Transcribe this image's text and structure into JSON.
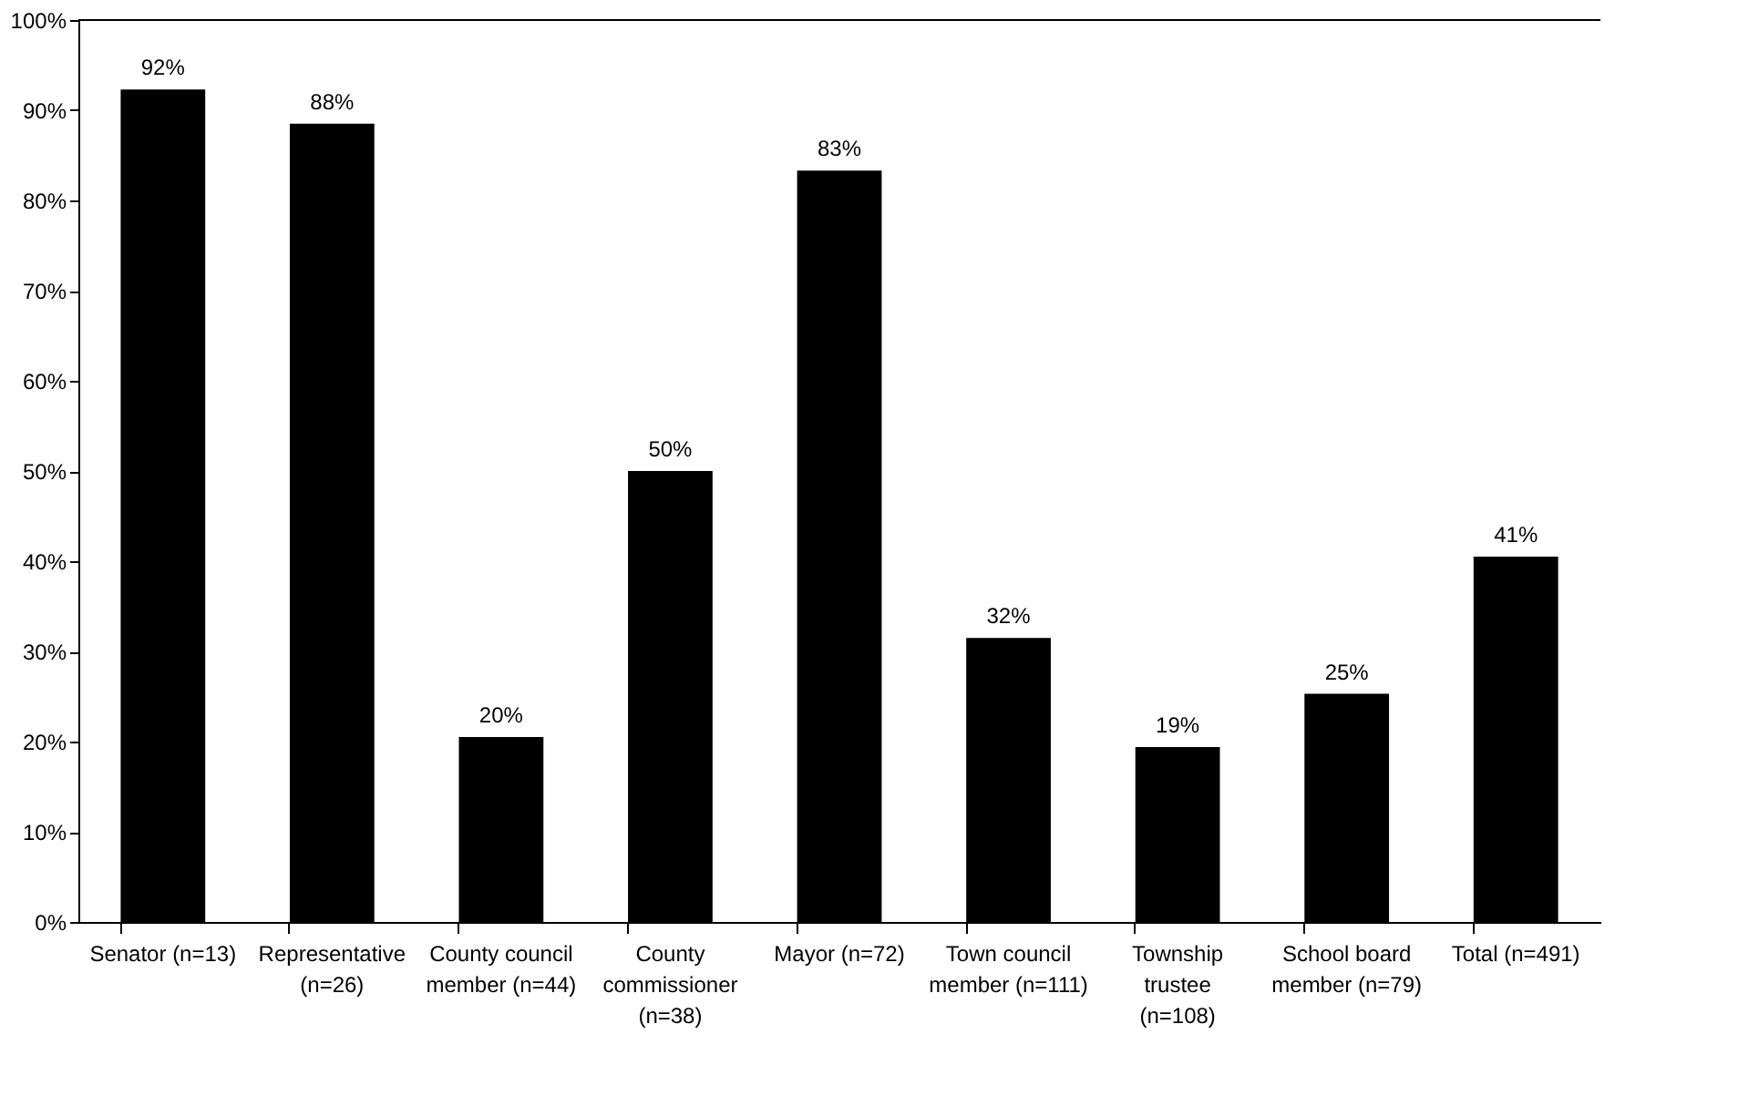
{
  "chart_data": {
    "type": "bar",
    "categories": [
      "Senator (n=13)",
      "Representative (n=26)",
      "County council member (n=44)",
      "County commissioner (n=38)",
      "Mayor (n=72)",
      "Town council member (n=111)",
      "Township trustee (n=108)",
      "School board member (n=79)",
      "Total (n=491)"
    ],
    "values": [
      92.3,
      88.5,
      20.5,
      50,
      83.3,
      31.5,
      19.4,
      25.3,
      40.5
    ],
    "value_labels": [
      "92%",
      "88%",
      "20%",
      "50%",
      "83%",
      "32%",
      "19%",
      "25%",
      "41%"
    ],
    "color": "#000000",
    "ylim": [
      0,
      100
    ],
    "yticks": [
      {
        "value": 0,
        "label": "0%"
      },
      {
        "value": 10,
        "label": "10%"
      },
      {
        "value": 20,
        "label": "20%"
      },
      {
        "value": 30,
        "label": "30%"
      },
      {
        "value": 40,
        "label": "40%"
      },
      {
        "value": 50,
        "label": "50%"
      },
      {
        "value": 60,
        "label": "60%"
      },
      {
        "value": 70,
        "label": "70%"
      },
      {
        "value": 80,
        "label": "80%"
      },
      {
        "value": 90,
        "label": "90%"
      },
      {
        "value": 100,
        "label": "100%"
      }
    ],
    "grid": false
  }
}
